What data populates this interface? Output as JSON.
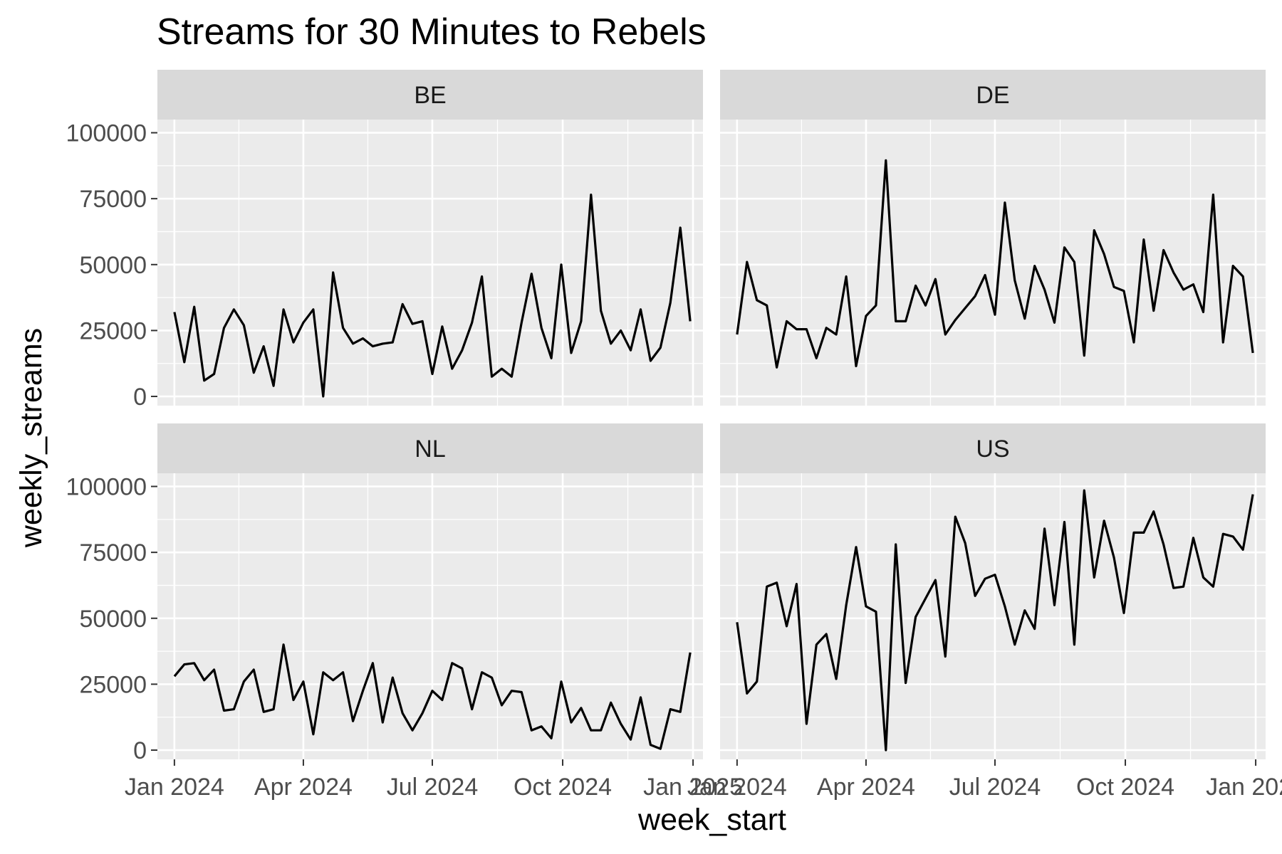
{
  "chart_data": {
    "type": "line",
    "title": "Streams for 30 Minutes to Rebels",
    "xlabel": "week_start",
    "ylabel": "weekly_streams",
    "x_tick_labels": [
      "Jan 2024",
      "Apr 2024",
      "Jul 2024",
      "Oct 2024",
      "Jan 2025"
    ],
    "y_tick_labels": [
      "0",
      "25000",
      "50000",
      "75000",
      "100000"
    ],
    "y_ticks": [
      0,
      25000,
      50000,
      75000,
      100000
    ],
    "ylim": [
      -3500,
      105000
    ],
    "xlim": [
      "2023-12-20",
      "2025-01-08"
    ],
    "x_ticks": [
      "2024-01-01",
      "2024-04-01",
      "2024-07-01",
      "2024-10-01",
      "2025-01-01"
    ],
    "grid": true,
    "colors": {
      "panel_bg": "#ebebeb",
      "strip_bg": "#d9d9d9",
      "grid": "#ffffff",
      "line": "#000000"
    },
    "panels": [
      {
        "name": "BE",
        "start": "2024-01-01",
        "interval_days": 7,
        "values": [
          32000,
          13000,
          34000,
          6000,
          8500,
          26000,
          33000,
          27000,
          9000,
          19000,
          4000,
          33000,
          20500,
          28000,
          33000,
          0,
          47000,
          26000,
          20000,
          22000,
          19000,
          20000,
          20500,
          35000,
          27500,
          28500,
          8500,
          26500,
          10500,
          17500,
          28000,
          45500,
          7500,
          10500,
          7500,
          28000,
          46500,
          26000,
          14500,
          50000,
          16500,
          28500,
          76500,
          32500,
          20000,
          25000,
          17500,
          33000,
          13500,
          18500,
          35500,
          64000,
          28500
        ]
      },
      {
        "name": "DE",
        "start": "2024-01-01",
        "interval_days": 7,
        "values": [
          23500,
          51000,
          36500,
          34500,
          11000,
          28500,
          25500,
          25500,
          14500,
          26000,
          23500,
          45500,
          11500,
          30500,
          34500,
          89500,
          28500,
          28500,
          42000,
          34500,
          44500,
          23500,
          29000,
          33500,
          38000,
          46000,
          31000,
          73500,
          44000,
          29500,
          49500,
          40500,
          28000,
          56500,
          51000,
          15500,
          63000,
          54000,
          41500,
          40000,
          20500,
          59500,
          32500,
          55500,
          47000,
          40500,
          42500,
          32000,
          76500,
          20500,
          49500,
          45500,
          16500
        ]
      },
      {
        "name": "NL",
        "start": "2024-01-01",
        "interval_days": 7,
        "values": [
          28000,
          32500,
          33000,
          26500,
          30500,
          15000,
          15500,
          26000,
          30500,
          14500,
          15500,
          40000,
          19000,
          26000,
          6000,
          29500,
          26500,
          29500,
          11000,
          22500,
          33000,
          10500,
          27500,
          14000,
          7500,
          14000,
          22500,
          19000,
          33000,
          31000,
          15500,
          29500,
          27500,
          17000,
          22500,
          22000,
          7500,
          9000,
          4500,
          26000,
          10500,
          16000,
          7500,
          7500,
          18000,
          10000,
          4000,
          20000,
          2000,
          500,
          15500,
          14500,
          37000
        ]
      },
      {
        "name": "US",
        "start": "2024-01-01",
        "interval_days": 7,
        "values": [
          48500,
          21500,
          26000,
          62000,
          63500,
          47000,
          63000,
          10000,
          40000,
          44000,
          27000,
          55000,
          77000,
          54500,
          52500,
          0,
          78000,
          25500,
          50500,
          57500,
          64500,
          35500,
          88500,
          78500,
          58500,
          65000,
          66500,
          54500,
          40000,
          53000,
          46000,
          84000,
          55000,
          86500,
          40000,
          98500,
          65500,
          87000,
          73000,
          52000,
          82500,
          82500,
          90500,
          78000,
          61500,
          62000,
          80500,
          65500,
          62000,
          82000,
          81000,
          76000,
          97000
        ]
      }
    ]
  }
}
